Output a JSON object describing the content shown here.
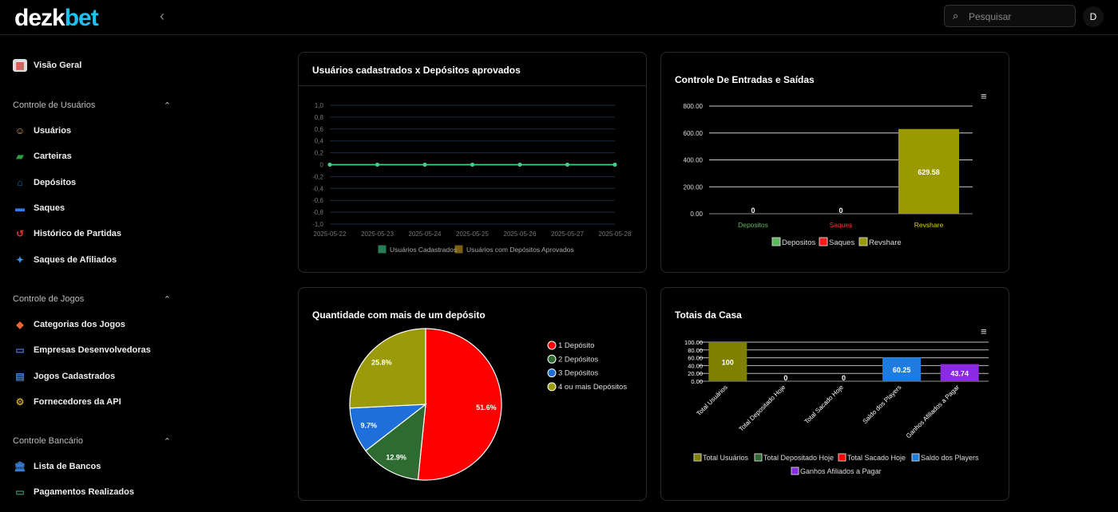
{
  "header": {
    "logo_a": "dezk",
    "logo_b": "bet",
    "search_placeholder": "Pesquisar",
    "avatar": "D"
  },
  "sidebar": {
    "overview": "Visão Geral",
    "sections": [
      {
        "title": "Controle de Usuários",
        "items": [
          "Usuários",
          "Carteiras",
          "Depósitos",
          "Saques",
          "Histórico de Partidas",
          "Saques de Afiliados"
        ]
      },
      {
        "title": "Controle de Jogos",
        "items": [
          "Categorias dos Jogos",
          "Empresas Desenvolvedoras",
          "Jogos Cadastrados",
          "Fornecedores da API"
        ]
      },
      {
        "title": "Controle Bancário",
        "items": [
          "Lista de Bancos",
          "Pagamentos Realizados"
        ]
      }
    ]
  },
  "cards": {
    "line": "Usuários cadastrados x Depósitos aprovados",
    "flow": "Controle De Entradas e Saídas",
    "pie": "Quantidade com mais de um depósito",
    "totals": "Totais da Casa"
  },
  "chart_data": [
    {
      "type": "line",
      "x": [
        "2025-05-22",
        "2025-05-23",
        "2025-05-24",
        "2025-05-25",
        "2025-05-26",
        "2025-05-27",
        "2025-05-28"
      ],
      "yticks": [
        "1,0",
        "0,8",
        "0,6",
        "0,4",
        "0,2",
        "0",
        "-0,2",
        "-0,4",
        "-0,6",
        "-0,8",
        "-1,0"
      ],
      "ylim": [
        -1,
        1
      ],
      "series": [
        {
          "name": "Usuários Cadastrados",
          "values": [
            0,
            0,
            0,
            0,
            0,
            0,
            0
          ],
          "color": "#3ecf8e"
        },
        {
          "name": "Usuários com Depósitos Aprovados",
          "values": [
            0,
            0,
            0,
            0,
            0,
            0,
            0
          ],
          "color": "#c9a227"
        }
      ]
    },
    {
      "type": "bar",
      "categories": [
        "Depositos",
        "Saques",
        "Revshare"
      ],
      "values": [
        0,
        0,
        629.58
      ],
      "colors": [
        "#5cb85c",
        "#ff1a1a",
        "#9a9a00"
      ],
      "ylim": [
        0,
        800
      ],
      "yticks": [
        "0.00",
        "200.00",
        "400.00",
        "600.00",
        "800.00"
      ]
    },
    {
      "type": "pie",
      "labels": [
        "1 Depósito",
        "2 Depósitos",
        "3 Depósitos",
        "4 ou mais Depósitos"
      ],
      "values": [
        51.6,
        12.9,
        9.7,
        25.8
      ],
      "colors": [
        "#ff0000",
        "#2e6b30",
        "#1e6fd9",
        "#9a9a0a"
      ]
    },
    {
      "type": "bar",
      "categories": [
        "Total Usuários",
        "Total Depositado Hoje",
        "Total Sacado Hoje",
        "Saldo dos Players",
        "Ganhos Afiliados a Pagar"
      ],
      "values": [
        100,
        0,
        0,
        60.25,
        43.74
      ],
      "colors": [
        "#808000",
        "#2e6b30",
        "#ff0000",
        "#1e7be0",
        "#8a2be2"
      ],
      "ylim": [
        0,
        100
      ],
      "yticks": [
        "0.00",
        "20.00",
        "40.00",
        "60.00",
        "80.00",
        "100.00"
      ]
    }
  ]
}
